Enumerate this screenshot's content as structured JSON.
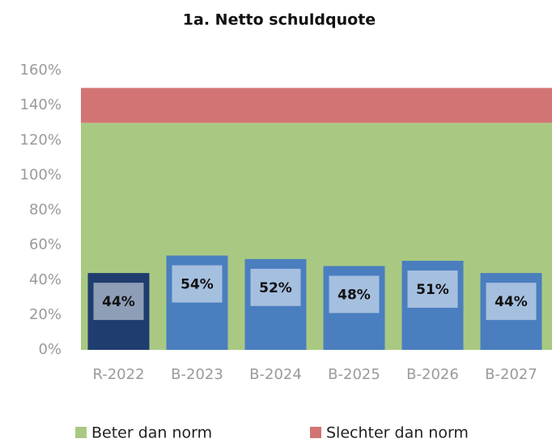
{
  "chart_data": {
    "type": "bar",
    "title": "1a. Netto schuldquote",
    "categories": [
      "R-2022",
      "B-2023",
      "B-2024",
      "B-2025",
      "B-2026",
      "B-2027"
    ],
    "values": [
      44,
      54,
      52,
      48,
      51,
      44
    ],
    "value_labels": [
      "44%",
      "54%",
      "52%",
      "48%",
      "51%",
      "44%"
    ],
    "colors": [
      "#1f3d6e",
      "#4a7ebf",
      "#4a7ebf",
      "#4a7ebf",
      "#4a7ebf",
      "#4a7ebf"
    ],
    "bands": [
      {
        "name": "Beter dan norm",
        "color": "#a9c982",
        "from": 0,
        "to": 130
      },
      {
        "name": "Slechter dan norm",
        "color": "#d27474",
        "from": 130,
        "to": 150
      }
    ],
    "ylim": [
      0,
      160
    ],
    "yticks": [
      {
        "value": 0,
        "label": "0%"
      },
      {
        "value": 20,
        "label": "20%"
      },
      {
        "value": 40,
        "label": "40%"
      },
      {
        "value": 60,
        "label": "60%"
      },
      {
        "value": 80,
        "label": "80%"
      },
      {
        "value": 100,
        "label": "100%"
      },
      {
        "value": 120,
        "label": "120%"
      },
      {
        "value": 140,
        "label": "140%"
      },
      {
        "value": 160,
        "label": "160%"
      }
    ]
  }
}
